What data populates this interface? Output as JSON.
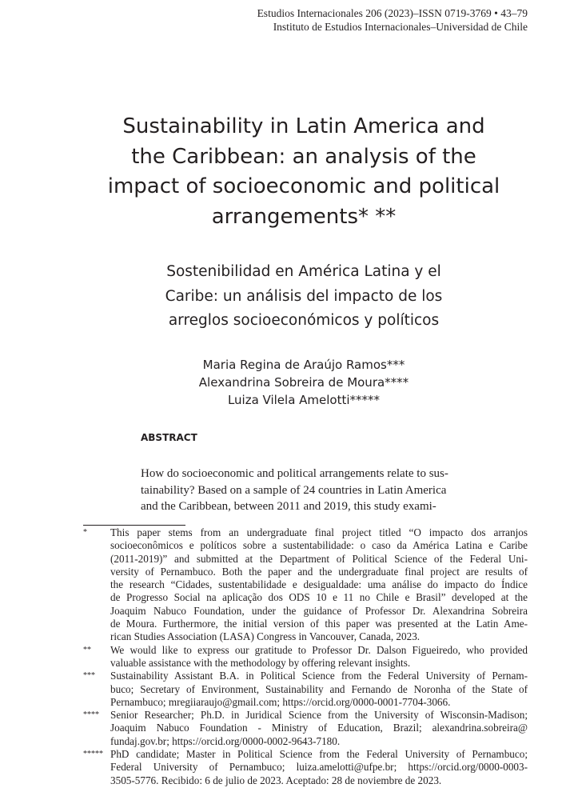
{
  "header": {
    "line1": "Estudios Internacionales 206 (2023)–ISSN 0719-3769 • 43–79",
    "line2": "Instituto de Estudios Internacionales–Universidad de Chile"
  },
  "title": [
    "Sustainability in Latin America and",
    "the Caribbean: an analysis of the",
    "impact of socioeconomic and political",
    "arrangements* **"
  ],
  "subtitle": [
    "Sostenibilidad en América Latina y el",
    "Caribe: un análisis del impacto de los",
    "arreglos socioeconómicos y políticos"
  ],
  "authors": [
    "Maria Regina de Araújo Ramos***",
    "Alexandrina Sobreira de Moura****",
    "Luiza Vilela Amelotti*****"
  ],
  "abstract": {
    "heading": "ABSTRACT",
    "lines": [
      "How do socioeconomic and political arrangements relate to sus-",
      "tainability? Based on a sample of 24 countries in Latin America",
      "and the Caribbean, between 2011 and 2019, this study exami-"
    ]
  },
  "footnotes": [
    {
      "mark": "*",
      "lines": [
        "This paper stems from an undergraduate final project titled “O impacto dos arranjos",
        "socioeconômicos e políticos sobre a sustentabilidade: o caso da América Latina e Caribe",
        "(2011-2019)” and submitted at the Department of Political Science of the Federal Uni-",
        "versity of Pernambuco. Both the paper and the undergraduate final project are results of",
        "the research “Cidades, sustentabilidade e desigualdade: uma análise do impacto do Índice",
        "de Progresso Social na aplicação dos ODS 10 e 11 no Chile e Brasil” developed at the",
        "Joaquim Nabuco Foundation, under the guidance of Professor Dr. Alexandrina Sobreira",
        "de Moura. Furthermore, the initial version of this paper was presented at the Latin Ame-",
        "rican Studies Association (LASA) Congress in Vancouver, Canada, 2023."
      ]
    },
    {
      "mark": "**",
      "lines": [
        "We would like to express our gratitude to Professor Dr. Dalson Figueiredo, who provided",
        "valuable assistance with the methodology by offering relevant insights."
      ]
    },
    {
      "mark": "***",
      "lines": [
        "Sustainability Assistant B.A. in Political Science from the Federal University of Pernam-",
        "buco; Secretary of Environment, Sustainability and Fernando de Noronha of the State of",
        "Pernambuco; mregiiaraujo@gmail.com; https://orcid.org/0000-0001-7704-3066."
      ]
    },
    {
      "mark": "****",
      "lines": [
        "Senior Researcher; Ph.D. in Juridical Science from the University of Wisconsin-Madison;",
        "Joaquim Nabuco Foundation - Ministry of Education, Brazil; alexandrina.sobreira@",
        "fundaj.gov.br; https://orcid.org/0000-0002-9643-7180."
      ]
    },
    {
      "mark": "*****",
      "lines": [
        "PhD candidate; Master in Political Science from the Federal University of Pernambuco;",
        "Federal University of Pernambuco; luiza.amelotti@ufpe.br; https://orcid.org/0000-0003-",
        "3505-5776. Recibido: 6 de julio de 2023. Aceptado: 28 de noviembre de 2023."
      ]
    }
  ]
}
